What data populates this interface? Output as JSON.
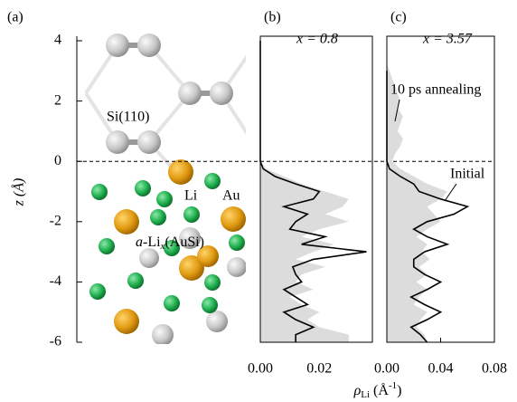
{
  "chart_data": [
    {
      "type": "structure",
      "panel_label": "(a)",
      "ylabel": "z (Å)",
      "ylim": [
        -6,
        4
      ],
      "yticks": [
        -6,
        -4,
        -2,
        0,
        2,
        4
      ],
      "hline": 0,
      "annotations": {
        "si": "Si(110)",
        "li": "Li",
        "au": "Au",
        "alloy": {
          "italic": "a",
          "text": "-Li",
          "sub": "x",
          "rest": "(AuSi)"
        }
      }
    },
    {
      "type": "line",
      "panel_label": "(b)",
      "title": "x = 0.8",
      "xlim": [
        0,
        0.038
      ],
      "xticks": [
        {
          "value": 0,
          "label": "0.00"
        },
        {
          "value": 0.02,
          "label": "0.02"
        }
      ],
      "xlabel": {
        "main": "ρ",
        "sub": "Li",
        "unit": " (Å",
        "sup": "-1",
        "close": ")"
      },
      "ylim": [
        -6,
        4
      ],
      "y": [
        4,
        3.75,
        3.5,
        3.25,
        3,
        2.75,
        2.5,
        2.25,
        2,
        1.75,
        1.5,
        1.25,
        1,
        0.75,
        0.5,
        0.25,
        0,
        -0.25,
        -0.5,
        -0.75,
        -1,
        -1.25,
        -1.5,
        -1.75,
        -2,
        -2.25,
        -2.5,
        -2.75,
        -3,
        -3.25,
        -3.5,
        -3.75,
        -4,
        -4.25,
        -4.5,
        -4.75,
        -5,
        -5.25,
        -5.5,
        -5.75,
        -6
      ],
      "series": [
        {
          "color": "#dcdcdc",
          "fill": true,
          "values": [
            0,
            0,
            0,
            0,
            0,
            0,
            0,
            0,
            0,
            0,
            0,
            0,
            0,
            0,
            0,
            0,
            0,
            0.002,
            0.008,
            0.014,
            0.022,
            0.03,
            0.028,
            0.022,
            0.03,
            0.02,
            0.014,
            0.025,
            0.018,
            0.012,
            0.022,
            0.014,
            0.012,
            0.018,
            0.01,
            0.014,
            0.02,
            0.016,
            0.02,
            0.03,
            0.03
          ]
        },
        {
          "color": "#000000",
          "fill": false,
          "values": [
            0,
            0,
            0,
            0,
            0,
            0,
            0,
            0,
            0,
            0,
            0,
            0,
            0,
            0,
            0,
            0,
            0,
            0.001,
            0.005,
            0.012,
            0.02,
            0.018,
            0.008,
            0.016,
            0.012,
            0.01,
            0.022,
            0.014,
            0.036,
            0.018,
            0.011,
            0.012,
            0.014,
            0.008,
            0.012,
            0.016,
            0.008,
            0.012,
            0.018,
            0.012,
            0.012
          ]
        }
      ]
    },
    {
      "type": "line",
      "panel_label": "(c)",
      "title": "x = 3.57",
      "xlim": [
        0,
        0.08
      ],
      "xticks": [
        {
          "value": 0,
          "label": "0.00"
        },
        {
          "value": 0.04,
          "label": "0.04"
        },
        {
          "value": 0.08,
          "label": "0.08"
        }
      ],
      "ylim": [
        -6,
        4
      ],
      "y": [
        4,
        3.75,
        3.5,
        3.25,
        3,
        2.75,
        2.5,
        2.25,
        2,
        1.75,
        1.5,
        1.25,
        1,
        0.75,
        0.5,
        0.25,
        0,
        -0.25,
        -0.5,
        -0.75,
        -1,
        -1.25,
        -1.5,
        -1.75,
        -2,
        -2.25,
        -2.5,
        -2.75,
        -3,
        -3.25,
        -3.5,
        -3.75,
        -4,
        -4.25,
        -4.5,
        -4.75,
        -5,
        -5.25,
        -5.5,
        -5.75,
        -6
      ],
      "series": [
        {
          "name": "10 ps annealing",
          "color": "#dcdcdc",
          "fill": true,
          "values": [
            0,
            0,
            0,
            0,
            0.002,
            0.004,
            0.006,
            0.008,
            0.01,
            0.008,
            0.012,
            0.01,
            0.008,
            0.012,
            0.01,
            0.006,
            0.004,
            0.01,
            0.02,
            0.03,
            0.045,
            0.04,
            0.03,
            0.035,
            0.04,
            0.03,
            0.022,
            0.03,
            0.026,
            0.032,
            0.024,
            0.03,
            0.022,
            0.03,
            0.024,
            0.02,
            0.03,
            0.025,
            0.022,
            0.028,
            0.03
          ]
        },
        {
          "name": "Initial",
          "color": "#000000",
          "fill": false,
          "values": [
            null,
            null,
            null,
            null,
            0,
            0,
            0,
            0,
            0,
            0,
            0,
            0,
            0,
            0,
            0,
            0,
            0,
            0.002,
            0.01,
            0.02,
            0.024,
            0.04,
            0.06,
            0.05,
            0.03,
            0.02,
            0.03,
            0.045,
            0.028,
            0.02,
            0.02,
            0.028,
            0.04,
            0.03,
            0.018,
            0.028,
            0.04,
            0.03,
            0.018,
            0.025,
            0.03
          ]
        }
      ]
    }
  ]
}
